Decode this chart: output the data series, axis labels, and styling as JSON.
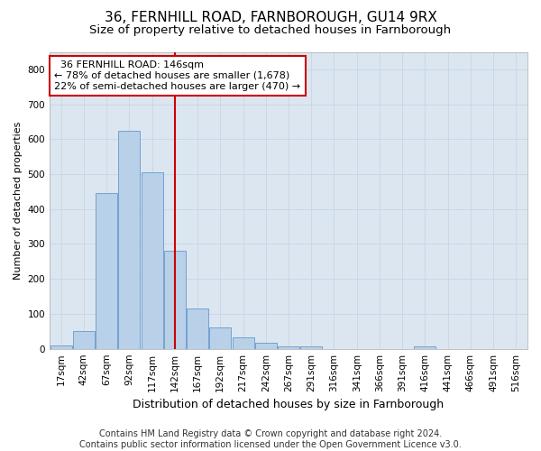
{
  "title1": "36, FERNHILL ROAD, FARNBOROUGH, GU14 9RX",
  "title2": "Size of property relative to detached houses in Farnborough",
  "xlabel": "Distribution of detached houses by size in Farnborough",
  "ylabel": "Number of detached properties",
  "categories": [
    "17sqm",
    "42sqm",
    "67sqm",
    "92sqm",
    "117sqm",
    "142sqm",
    "167sqm",
    "192sqm",
    "217sqm",
    "242sqm",
    "267sqm",
    "291sqm",
    "316sqm",
    "341sqm",
    "366sqm",
    "391sqm",
    "416sqm",
    "441sqm",
    "466sqm",
    "491sqm",
    "516sqm"
  ],
  "values": [
    10,
    52,
    445,
    625,
    505,
    280,
    115,
    62,
    33,
    18,
    8,
    8,
    0,
    0,
    0,
    0,
    8,
    0,
    0,
    0,
    0
  ],
  "bar_color": "#b8d0e8",
  "bar_edge_color": "#6699cc",
  "vline_x_index": 5,
  "vline_color": "#cc0000",
  "annotation_text": "  36 FERNHILL ROAD: 146sqm\n← 78% of detached houses are smaller (1,678)\n22% of semi-detached houses are larger (470) →",
  "annotation_box_color": "white",
  "annotation_edge_color": "#cc0000",
  "ylim": [
    0,
    850
  ],
  "yticks": [
    0,
    100,
    200,
    300,
    400,
    500,
    600,
    700,
    800
  ],
  "grid_color": "#c8d4e8",
  "bg_color": "#dce6f0",
  "footer_text": "Contains HM Land Registry data © Crown copyright and database right 2024.\nContains public sector information licensed under the Open Government Licence v3.0.",
  "title1_fontsize": 11,
  "title2_fontsize": 9.5,
  "xlabel_fontsize": 9,
  "ylabel_fontsize": 8,
  "tick_fontsize": 7.5,
  "annotation_fontsize": 8,
  "footer_fontsize": 7
}
